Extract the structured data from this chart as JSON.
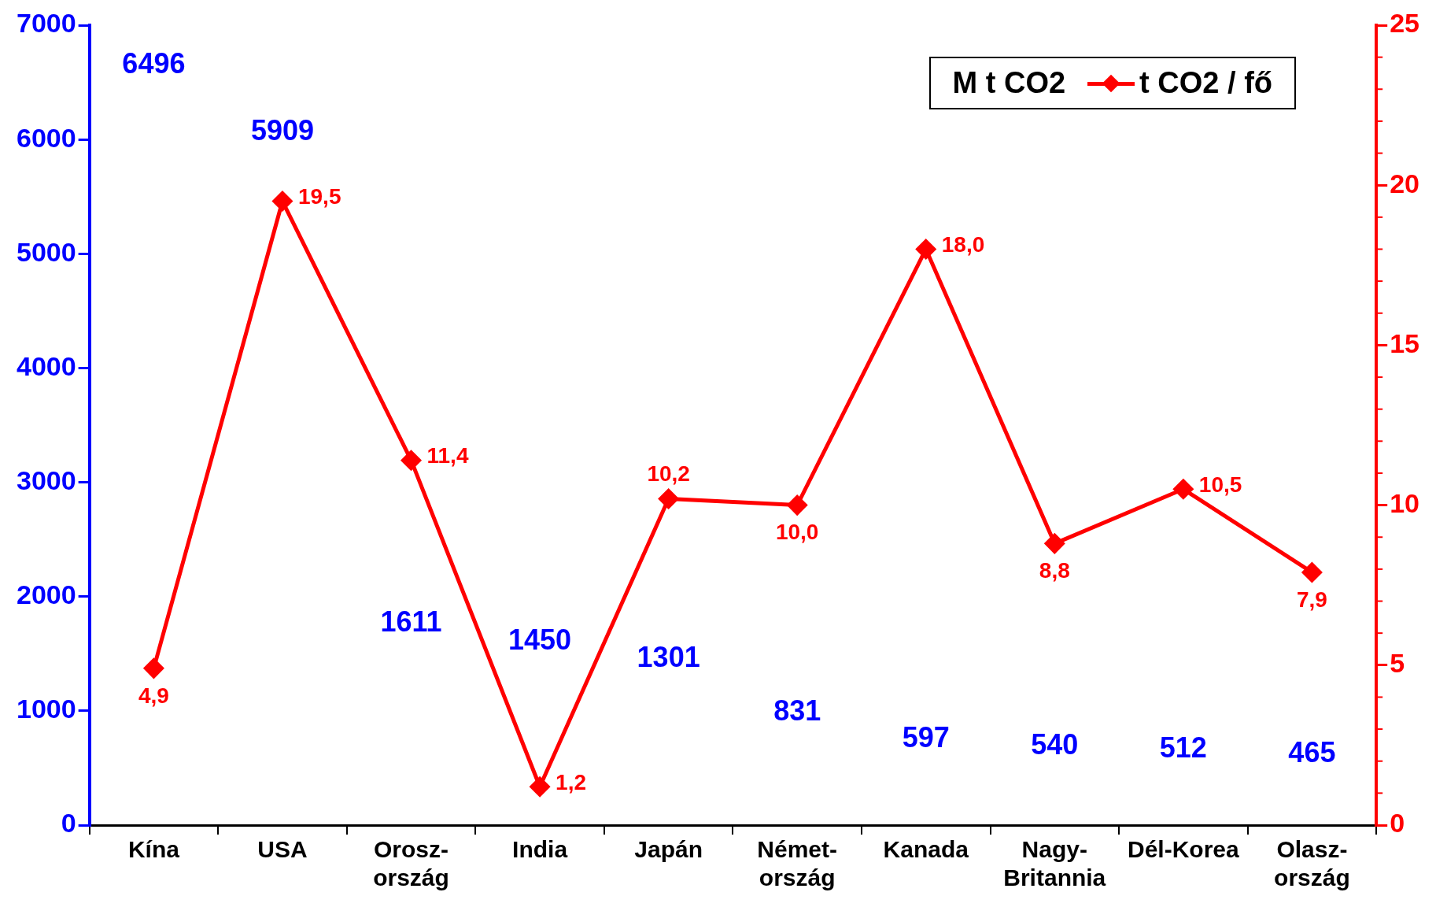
{
  "chart_data": {
    "type": "line",
    "categories": [
      "Kína",
      "USA",
      "Orosz-\nország",
      "India",
      "Japán",
      "Német-\nország",
      "Kanada",
      "Nagy-\nBritannia",
      "Dél-Korea",
      "Olasz-\nország"
    ],
    "series": [
      {
        "name": "t CO2 / fő",
        "axis": "y2",
        "color": "#ff0000",
        "marker": "diamond",
        "values": [
          4.9,
          19.5,
          11.4,
          1.2,
          10.2,
          10.0,
          18.0,
          8.8,
          10.5,
          7.9
        ],
        "value_labels": [
          "4,9",
          "19,5",
          "11,4",
          "1,2",
          "10,2",
          "10,0",
          "18,0",
          "8,8",
          "10,5",
          "7,9"
        ]
      }
    ],
    "annotations": [
      "M t CO2",
      "6496",
      "5909",
      "1611",
      "1450",
      "1301",
      "831",
      "597",
      "540",
      "512",
      "465"
    ],
    "ylim": [
      0,
      7000
    ],
    "yticks": [
      0,
      1000,
      2000,
      3000,
      4000,
      5000,
      6000,
      7000
    ],
    "y2lim": [
      0,
      25
    ],
    "y2ticks": [
      0,
      5,
      10,
      15,
      20,
      25
    ],
    "grid": false,
    "legend": "top right"
  }
}
